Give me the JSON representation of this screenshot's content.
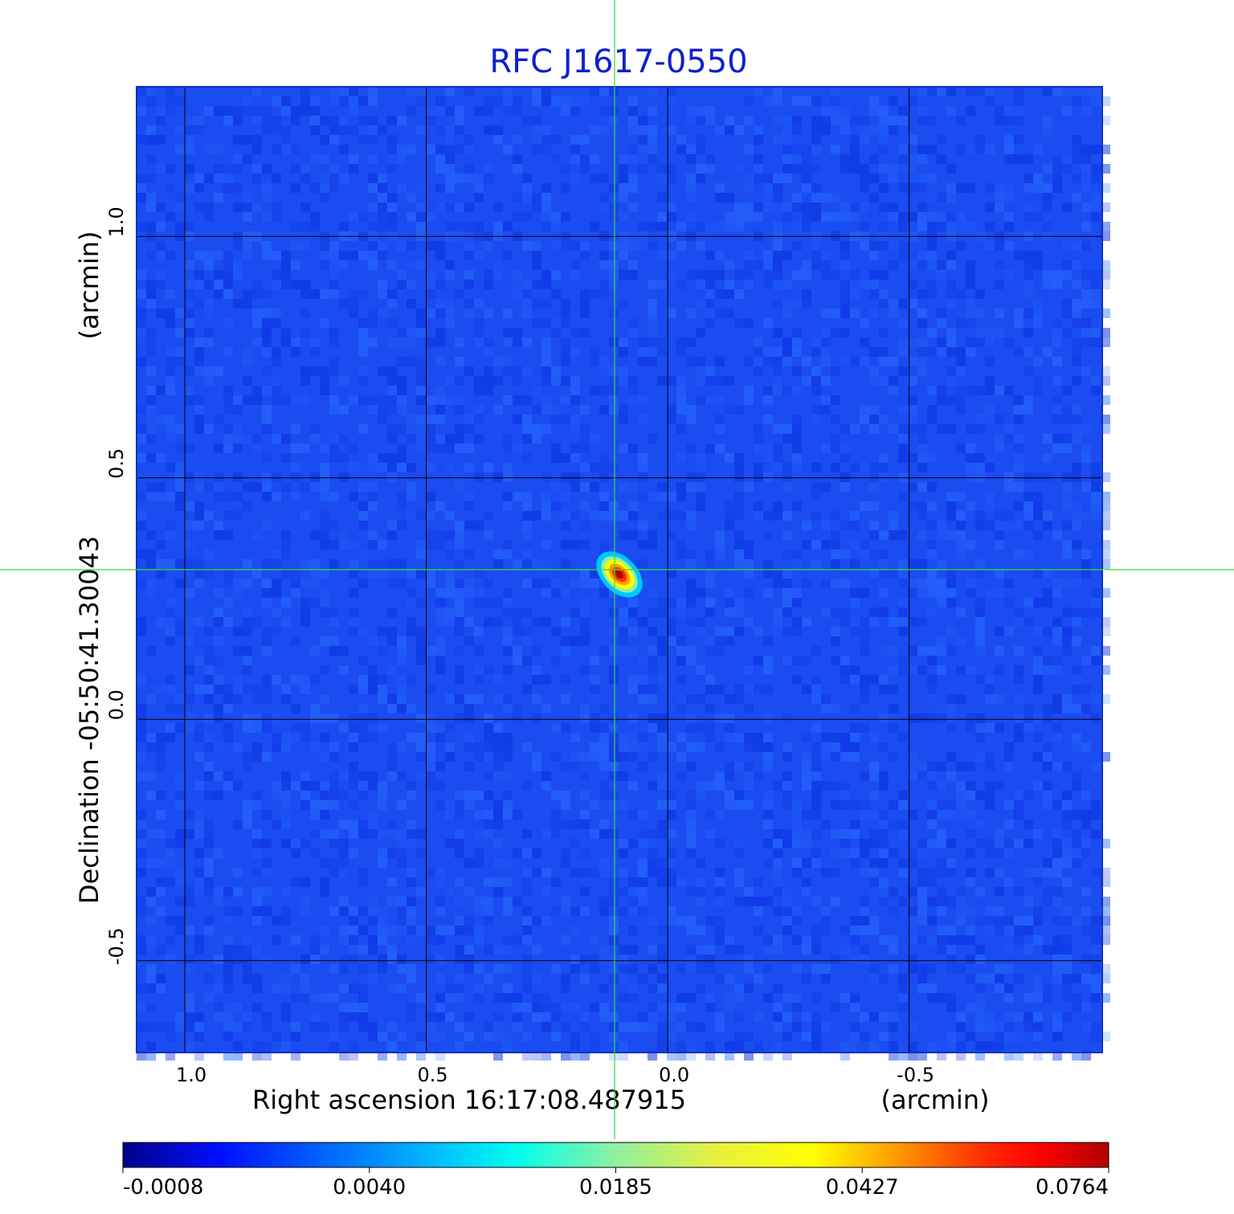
{
  "chart_data": {
    "type": "heatmap",
    "title": "RFC J1617-0550",
    "xlabel": "Right ascension  16:17:08.487915",
    "xunit": "(arcmin)",
    "ylabel": "Declination  -05:50:41.30043",
    "yunit": "(arcmin)",
    "xlim": [
      1.1,
      -0.9
    ],
    "ylim": [
      -0.69,
      1.31
    ],
    "x_ticks": [
      1.0,
      0.5,
      0.0,
      -0.5
    ],
    "x_tick_labels": [
      "1.0",
      "0.5",
      "0.0",
      "-0.5"
    ],
    "y_ticks": [
      1.0,
      0.5,
      0.0,
      -0.5
    ],
    "y_tick_labels": [
      "1.0",
      "0.5",
      "0.0",
      "-0.5"
    ],
    "grid": true,
    "crosshair": [
      0.11,
      0.31
    ],
    "source_peak": {
      "x": 0.1,
      "y": 0.3,
      "value": 0.0764
    },
    "colorbar": {
      "colormap": "jet",
      "tick_labels": [
        "-0.0008",
        "0.0040",
        "0.0185",
        "0.0427",
        "0.0764"
      ]
    },
    "colors": {
      "title": "#0d1fd0",
      "crosshair": "#33dd33",
      "grid": "#000000",
      "background": "#1a4cf2"
    }
  }
}
